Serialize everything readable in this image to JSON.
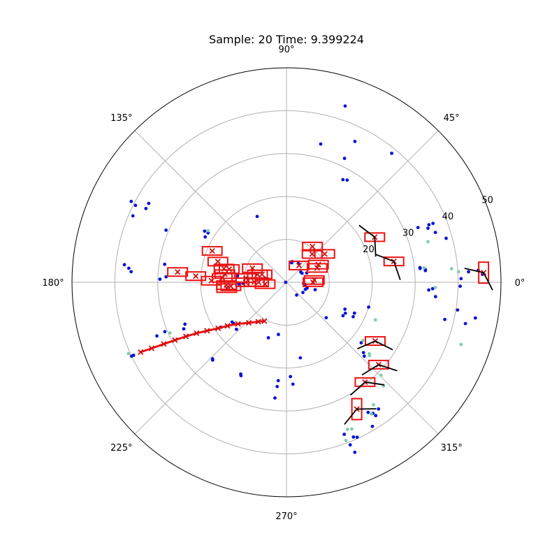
{
  "chart_data": {
    "type": "scatter",
    "subtype": "polar",
    "title": "Sample: 20 Time: 9.399224",
    "angle_tick_labels": [
      "0°",
      "45°",
      "90°",
      "135°",
      "180°",
      "225°",
      "270°",
      "315°"
    ],
    "angle_ticks_deg": [
      0,
      45,
      90,
      135,
      180,
      225,
      270,
      315
    ],
    "radial_ticks": [
      20,
      30,
      40,
      50
    ],
    "radial_gridlines": [
      10,
      20,
      30,
      40
    ],
    "rlim": [
      0,
      50
    ],
    "grid": true,
    "colors": {
      "points_dark": "#0a12d8",
      "points_light": "#7fd0a8",
      "track_boxes": "#ee1111",
      "track_markers": "#cc1111",
      "velocity_lines": "#000000",
      "grid": "#b0b0b0"
    },
    "series": [
      {
        "marker": "dot",
        "color": "#0a12d8",
        "points": [
          [
            33.2,
            76.1
          ],
          [
            43.3,
            71.6
          ],
          [
            38.8,
            50.8
          ],
          [
            36.5,
            64.1
          ],
          [
            31.9,
            64.9
          ],
          [
            27.7,
            59.3
          ],
          [
            27.3,
            61.2
          ],
          [
            16.8,
            114.0
          ],
          [
            21.6,
            147.8
          ],
          [
            21.7,
            150.8
          ],
          [
            28.7,
            171.6
          ],
          [
            28.1,
            177.4
          ],
          [
            29.5,
            178.6
          ],
          [
            39.0,
            156.6
          ],
          [
            39.5,
            153.0
          ],
          [
            40.8,
            152.5
          ],
          [
            37.0,
            150.2
          ],
          [
            37.0,
            152.3
          ],
          [
            30.6,
            156.6
          ],
          [
            36.3,
            176.1
          ],
          [
            38.0,
            173.8
          ],
          [
            36.9,
            174.9
          ],
          [
            22.5,
            148.0
          ],
          [
            11.5,
            172.4
          ],
          [
            32.5,
            4.8
          ],
          [
            32.5,
            5.2
          ],
          [
            31.3,
            5.9
          ],
          [
            31.3,
            6.3
          ],
          [
            40.7,
            1.2
          ],
          [
            45.7,
            2.3
          ],
          [
            35.3,
            20.9
          ],
          [
            35.8,
            22.0
          ],
          [
            36.8,
            21.9
          ],
          [
            33.2,
            22.6
          ],
          [
            39.5,
            205.5
          ],
          [
            40.0,
            205.5
          ],
          [
            32.7,
            202.5
          ],
          [
            30.6,
            202.1
          ],
          [
            25.6,
            202.4
          ],
          [
            26.3,
            204.4
          ],
          [
            18.5,
            214.5
          ],
          [
            15.6,
            218.0
          ],
          [
            24.8,
            226.0
          ],
          [
            25.0,
            226.5
          ],
          [
            16.0,
            223.2
          ],
          [
            15.7,
            216.2
          ],
          [
            23.9,
            243.5
          ],
          [
            24.2,
            244.0
          ],
          [
            17.9,
            280.4
          ],
          [
            23.0,
            265.2
          ],
          [
            24.4,
            264.9
          ],
          [
            27.1,
            264.3
          ],
          [
            23.8,
            273.6
          ],
          [
            22.0,
            272.4
          ],
          [
            13.6,
            251.9
          ],
          [
            12.3,
            261.2
          ],
          [
            20.0,
            343.2
          ],
          [
            17.4,
            335.6
          ],
          [
            15.5,
            332.3
          ],
          [
            15.0,
            335.3
          ],
          [
            15.3,
            329.4
          ],
          [
            12.4,
            318.3
          ],
          [
            17.5,
            332.7
          ],
          [
            22.4,
            321.0
          ],
          [
            24.3,
            317.6
          ],
          [
            25.0,
            316.5
          ],
          [
            37.4,
            303.8
          ],
          [
            36.5,
            306.0
          ],
          [
            40.7,
            291.4
          ],
          [
            42.7,
            291.9
          ],
          [
            39.3,
            293.4
          ],
          [
            39.7,
            294.5
          ],
          [
            39.1,
            300.8
          ],
          [
            36.6,
            303.4
          ],
          [
            35.8,
            302.1
          ],
          [
            37.9,
            290.8
          ],
          [
            4.7,
            75.2
          ],
          [
            4.8,
            77.7
          ],
          [
            5.0,
            74.4
          ],
          [
            5.2,
            58.1
          ],
          [
            4.2,
            30.1
          ],
          [
            4.1,
            36.0
          ],
          [
            3.8,
            308.5
          ],
          [
            4.5,
            328.2
          ],
          [
            4.7,
            339.3
          ],
          [
            5.0,
            344.5
          ],
          [
            6.9,
            345.5
          ],
          [
            5.2,
            24.8
          ],
          [
            4.4,
            353.1
          ],
          [
            4.0,
            356.2
          ],
          [
            11.1,
            182.1
          ],
          [
            10.1,
            181.6
          ],
          [
            5.1,
            169.5
          ],
          [
            0.2,
            180.0
          ],
          [
            34.9,
            354.5
          ],
          [
            37.9,
            346.8
          ],
          [
            40.4,
            350.8
          ],
          [
            44.8,
            349.3
          ],
          [
            42.8,
            347.0
          ],
          [
            33.2,
            356.9
          ],
          [
            34.1,
            357.5
          ],
          [
            44.8,
            3.6
          ],
          [
            42.5,
            3.3
          ],
          [
            40.5,
            358.7
          ],
          [
            36.6,
            18.5
          ],
          [
            38.6,
            15.4
          ]
        ]
      },
      {
        "marker": "dot",
        "color": "#7fd0a8",
        "points": [
          [
            21.9,
            146.7
          ],
          [
            38.6,
            4.7
          ],
          [
            40.2,
            3.5
          ],
          [
            32.2,
            6.0
          ],
          [
            34.7,
            358.0
          ],
          [
            43.2,
            340.4
          ],
          [
            22.5,
            337.1
          ],
          [
            22.4,
            322.7
          ],
          [
            25.8,
            318.6
          ],
          [
            25.5,
            319.2
          ],
          [
            33.1,
            313.1
          ],
          [
            30.9,
            315.5
          ],
          [
            39.4,
            290.6
          ],
          [
            37.1,
            292.5
          ],
          [
            36.5,
            302.8
          ],
          [
            35.0,
            305.4
          ],
          [
            37.4,
            294.0
          ],
          [
            29.6,
            203.5
          ],
          [
            40.4,
            204.3
          ],
          [
            34.3,
            16.0
          ]
        ]
      }
    ],
    "tracks": [
      {
        "r": 14.0,
        "theta": 185.6
      },
      {
        "r": 25.5,
        "theta": 174.6
      },
      {
        "r": 21.2,
        "theta": 176.1
      },
      {
        "r": 17.5,
        "theta": 178.8
      },
      {
        "r": 15.0,
        "theta": 176.1
      },
      {
        "r": 14.5,
        "theta": 172.5
      },
      {
        "r": 14.0,
        "theta": 182.7
      },
      {
        "r": 13.0,
        "theta": 184.1
      },
      {
        "r": 7.5,
        "theta": 179.4
      },
      {
        "r": 6.5,
        "theta": 180.0
      },
      {
        "r": 8.6,
        "theta": 157.6
      },
      {
        "r": 5.0,
        "theta": 185.0
      },
      {
        "r": 7.0,
        "theta": 164.9
      },
      {
        "r": 9.5,
        "theta": 180.0
      },
      {
        "r": 6.0,
        "theta": 162.0
      },
      {
        "r": 9.5,
        "theta": 174.0
      },
      {
        "r": 6.2,
        "theta": 0.2
      },
      {
        "r": 6.5,
        "theta": 4.7
      },
      {
        "r": 8.9,
        "theta": 47.8
      },
      {
        "r": 10.3,
        "theta": 54.0
      },
      {
        "r": 4.9,
        "theta": 53.2
      },
      {
        "r": 8.5,
        "theta": 29.0
      },
      {
        "r": 7.9,
        "theta": 25.1
      },
      {
        "r": 11.1,
        "theta": 36.6
      },
      {
        "r": 23.1,
        "theta": 27.1
      },
      {
        "r": 46.0,
        "theta": 2.8
      },
      {
        "r": 16.7,
        "theta": 163.2
      },
      {
        "r": 18.8,
        "theta": 157.1
      },
      {
        "r": 14.9,
        "theta": 167.6
      },
      {
        "r": 13.7,
        "theta": 167.0
      },
      {
        "r": 25.5,
        "theta": 11.0
      },
      {
        "r": 24.8,
        "theta": 326.5
      },
      {
        "r": 28.8,
        "theta": 318.2
      },
      {
        "r": 29.6,
        "theta": 308.2
      },
      {
        "r": 33.8,
        "theta": 299.0
      }
    ],
    "track_line": [
      [
        37.7,
        205.6
      ],
      [
        35.0,
        206.1
      ],
      [
        32.0,
        206.7
      ],
      [
        29.3,
        207.4
      ],
      [
        26.6,
        208.3
      ],
      [
        24.1,
        209.5
      ],
      [
        21.7,
        211.4
      ],
      [
        19.2,
        213.9
      ],
      [
        17.1,
        216.4
      ],
      [
        14.9,
        220.6
      ],
      [
        12.9,
        227.1
      ],
      [
        11.3,
        234.4
      ],
      [
        10.4,
        240.3
      ]
    ]
  }
}
